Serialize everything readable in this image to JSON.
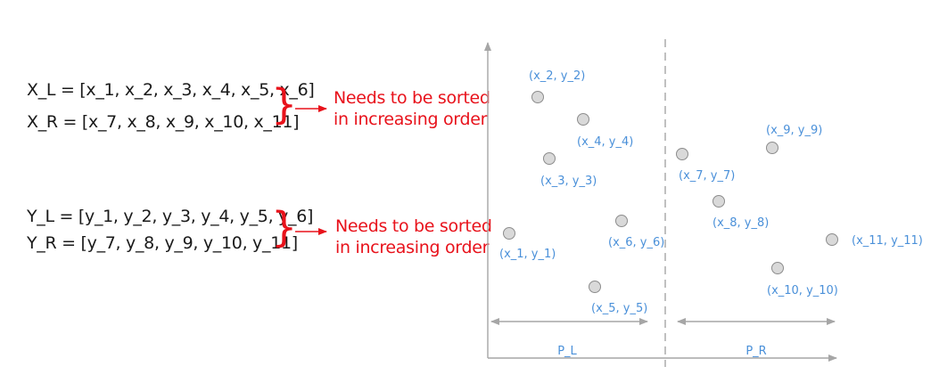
{
  "equations": {
    "x_left": "X_L = [x_1, x_2, x_3, x_4, x_5, x_6]",
    "x_right": "X_R = [x_7, x_8, x_9, x_10, x_11]",
    "y_left": "Y_L = [y_1, y_2, y_3, y_4, y_5, y_6]",
    "y_right": "Y_R = [y_7, y_8, y_9, y_10, y_11]"
  },
  "annotations": {
    "x_note_line1": "Needs to be sorted",
    "x_note_line2": "in increasing order",
    "y_note_line1": "Needs to be sorted",
    "y_note_line2": "in increasing order",
    "brace": "}"
  },
  "diagram": {
    "points": [
      {
        "id": "p1",
        "label": "(x_1, y_1)"
      },
      {
        "id": "p2",
        "label": "(x_2, y_2)"
      },
      {
        "id": "p3",
        "label": "(x_3, y_3)"
      },
      {
        "id": "p4",
        "label": "(x_4, y_4)"
      },
      {
        "id": "p5",
        "label": "(x_5, y_5)"
      },
      {
        "id": "p6",
        "label": "(x_6, y_6)"
      },
      {
        "id": "p7",
        "label": "(x_7, y_7)"
      },
      {
        "id": "p8",
        "label": "(x_8, y_8)"
      },
      {
        "id": "p9",
        "label": "(x_9, y_9)"
      },
      {
        "id": "p10",
        "label": "(x_10, y_10)"
      },
      {
        "id": "p11",
        "label": "(x_11, y_11)"
      }
    ],
    "partition_left": "P_L",
    "partition_right": "P_R"
  },
  "colors": {
    "text": "#1a1a1a",
    "accent": "#e8121b",
    "label": "#4a90d9",
    "axis": "#a6a6a6",
    "point_fill": "#d9d9d9",
    "point_stroke": "#8c8c8c"
  }
}
